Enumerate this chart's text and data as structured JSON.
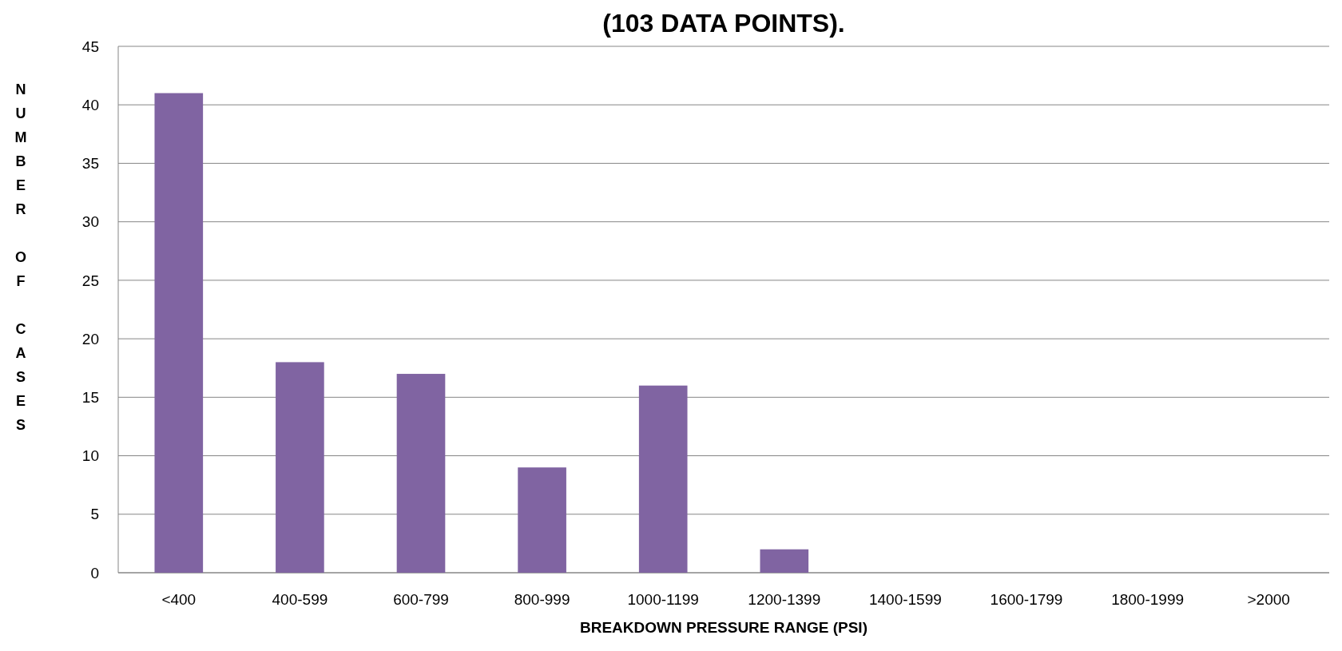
{
  "chart_data": {
    "type": "bar",
    "title": "(103 DATA POINTS).",
    "xlabel": "BREAKDOWN PRESSURE RANGE (PSI)",
    "ylabel": "NUMBER OF CASES",
    "categories": [
      "<400",
      "400-599",
      "600-799",
      "800-999",
      "1000-1199",
      "1200-1399",
      "1400-1599",
      "1600-1799",
      "1800-1999",
      ">2000"
    ],
    "values": [
      41,
      18,
      17,
      9,
      16,
      2,
      0,
      0,
      0,
      0
    ],
    "color": "#8064a2",
    "ylim": [
      0,
      45
    ],
    "yticks": [
      0,
      5,
      10,
      15,
      20,
      25,
      30,
      35,
      40,
      45
    ],
    "grid": "y"
  }
}
